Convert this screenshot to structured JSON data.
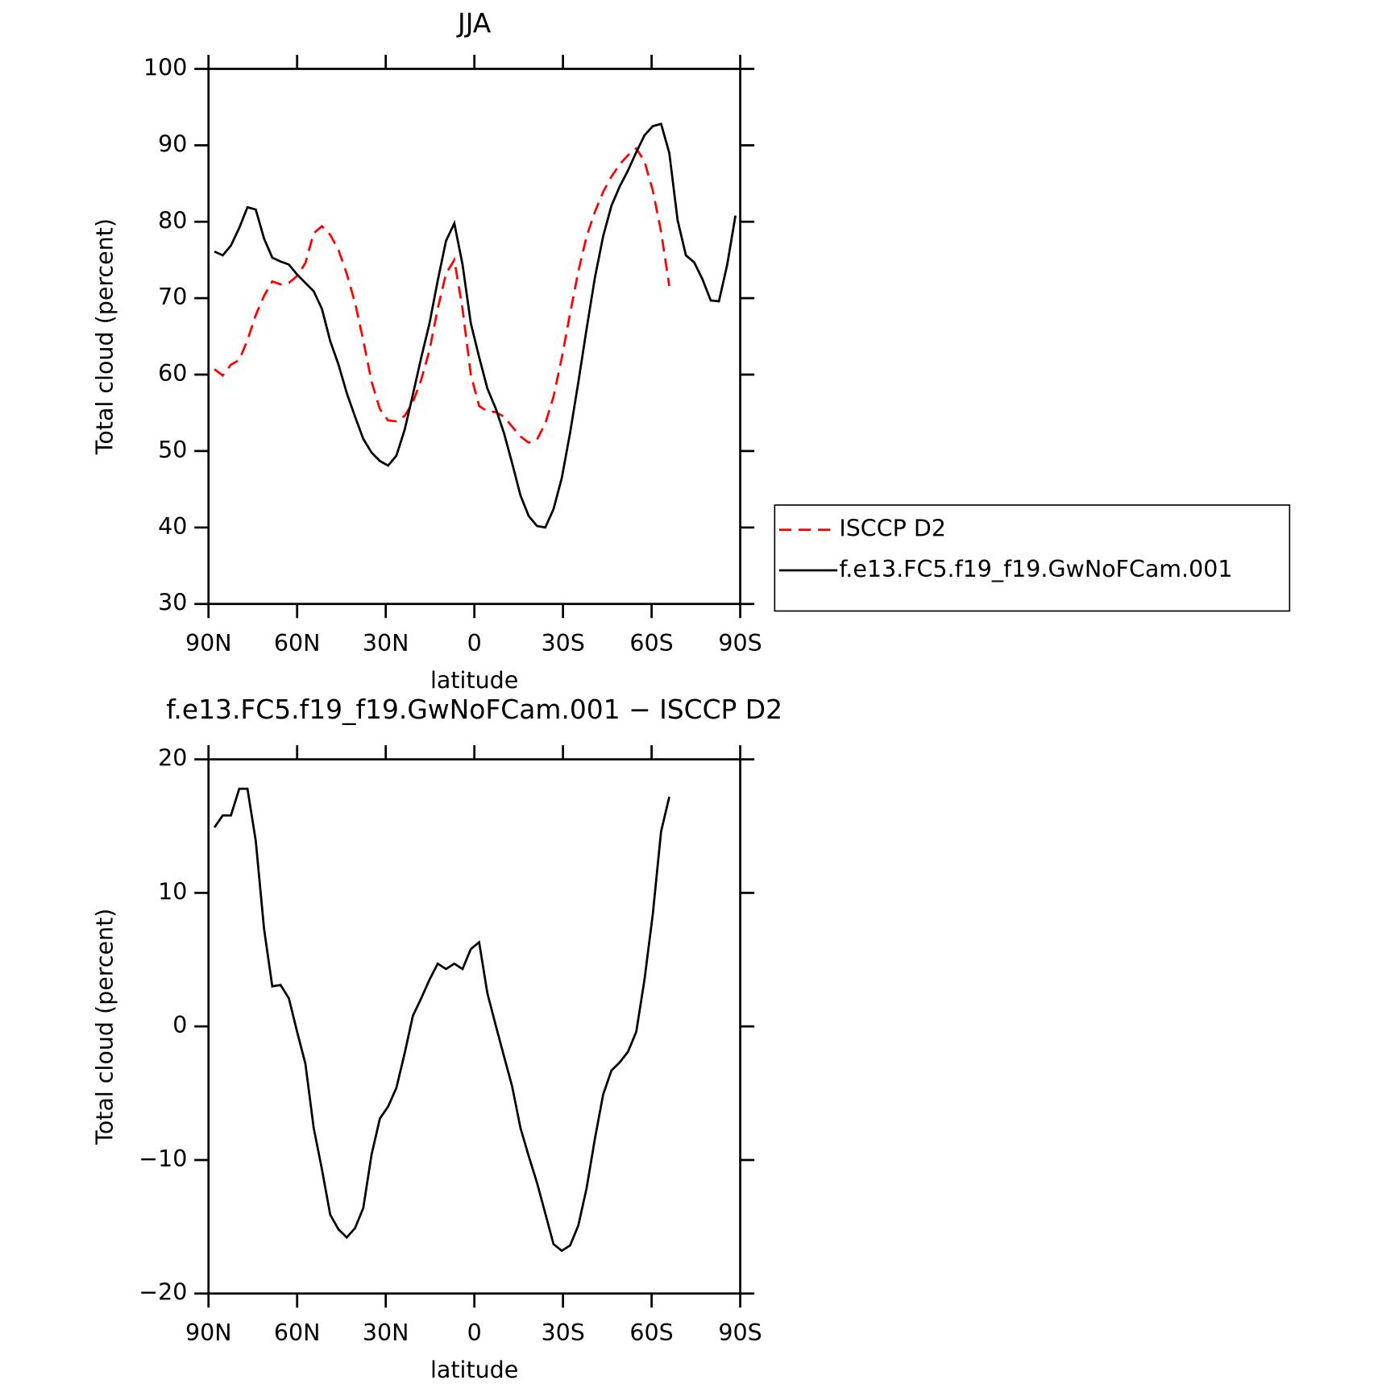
{
  "chart_data": [
    {
      "type": "line",
      "title": "JJA",
      "xlabel": "latitude",
      "ylabel": "Total cloud (percent)",
      "x": [
        88,
        85.2,
        82.4,
        79.6,
        76.8,
        74,
        71.2,
        68.4,
        65.6,
        62.8,
        60,
        57.2,
        54.4,
        51.6,
        48.8,
        46,
        43.2,
        40.4,
        37.6,
        34.8,
        32,
        29.2,
        26.4,
        23.6,
        20.8,
        18,
        15.2,
        12.4,
        9.6,
        6.8,
        4,
        1.2,
        -1.6,
        -4.4,
        -7.2,
        -10,
        -12.8,
        -15.6,
        -18.4,
        -21.2,
        -24,
        -26.8,
        -29.6,
        -32.4,
        -35.2,
        -38,
        -40.8,
        -43.6,
        -46.4,
        -49.2,
        -52,
        -54.8,
        -57.6,
        -60.4,
        -63.2,
        -66,
        -68.8,
        -71.6,
        -74.4,
        -77.2,
        -80,
        -82.8,
        -85.6,
        -88.4
      ],
      "series": [
        {
          "name": "ISCCP D2",
          "color": "#ff0000",
          "dash": "dashed",
          "values": [
            60.7,
            59.9,
            61.3,
            61.9,
            64.5,
            67.8,
            70.3,
            72.2,
            71.8,
            72.0,
            72.9,
            74.6,
            78.5,
            79.4,
            78.3,
            76.3,
            73.2,
            69.4,
            64.5,
            59.1,
            55.5,
            54.0,
            53.9,
            54.6,
            56.4,
            59.3,
            63.2,
            68.6,
            73.2,
            75.0,
            68.6,
            60.0,
            55.9,
            55.2,
            55.1,
            54.5,
            53.2,
            51.9,
            51.1,
            51.5,
            53.6,
            57.1,
            62.2,
            68.0,
            73.5,
            78.1,
            81.3,
            83.9,
            85.9,
            87.5,
            88.7,
            89.6,
            87.9,
            84.1,
            78.7,
            71.6,
            null,
            null,
            null,
            null,
            null,
            null,
            null,
            null
          ]
        },
        {
          "name": "f.e13.FC5.f19_f19.GwNoFCam.001",
          "color": "#000000",
          "dash": "solid",
          "values": [
            76.1,
            75.6,
            76.9,
            79.2,
            81.9,
            81.6,
            77.8,
            75.3,
            74.8,
            74.4,
            73.1,
            72.0,
            70.9,
            68.6,
            64.4,
            61.3,
            57.6,
            54.5,
            51.6,
            49.8,
            48.7,
            48.1,
            49.4,
            52.8,
            57.4,
            62.2,
            66.7,
            72.3,
            77.5,
            79.8,
            74.4,
            66.7,
            62.3,
            58.2,
            55.6,
            52.4,
            48.4,
            44.2,
            41.5,
            40.2,
            40.0,
            42.4,
            46.5,
            52.4,
            59.0,
            66.0,
            72.7,
            78.1,
            82.1,
            84.6,
            86.7,
            89.1,
            91.3,
            92.5,
            92.8,
            89.0,
            80.2,
            75.6,
            74.7,
            72.5,
            69.7,
            69.6,
            74.4,
            80.8
          ]
        }
      ],
      "xlim": [
        90,
        -90
      ],
      "xticks": [
        {
          "value": 90,
          "label": "90N"
        },
        {
          "value": 60,
          "label": "60N"
        },
        {
          "value": 30,
          "label": "30N"
        },
        0,
        {
          "value": -30,
          "label": "30S"
        },
        {
          "value": -60,
          "label": "60S"
        },
        {
          "value": -90,
          "label": "90S"
        }
      ],
      "ylim": [
        30,
        100
      ],
      "yticks": [
        30,
        40,
        50,
        60,
        70,
        80,
        90,
        100
      ],
      "legend": "right"
    },
    {
      "type": "line",
      "title": "f.e13.FC5.f19_f19.GwNoFCam.001 − ISCCP D2",
      "xlabel": "latitude",
      "ylabel": "Total cloud (percent)",
      "x": [
        88,
        85.2,
        82.4,
        79.6,
        76.8,
        74,
        71.2,
        68.4,
        65.6,
        62.8,
        60,
        57.2,
        54.4,
        51.6,
        48.8,
        46,
        43.2,
        40.4,
        37.6,
        34.8,
        32,
        29.2,
        26.4,
        23.6,
        20.8,
        18,
        15.2,
        12.4,
        9.6,
        6.8,
        4,
        1.2,
        -1.6,
        -4.4,
        -7.2,
        -10,
        -12.8,
        -15.6,
        -18.4,
        -21.2,
        -24,
        -26.8,
        -29.6,
        -32.4,
        -35.2,
        -38,
        -40.8,
        -43.6,
        -46.4,
        -49.2,
        -52,
        -54.8,
        -57.6,
        -60.4,
        -63.2,
        -66,
        -68.8,
        -71.6,
        -74.4,
        -77.2,
        -80,
        -82.8,
        -85.6,
        -88.4
      ],
      "values": [
        14.9,
        15.8,
        15.8,
        17.8,
        17.8,
        13.9,
        7.3,
        3.0,
        3.1,
        2.1,
        -0.4,
        -2.8,
        -7.6,
        -10.7,
        -14.1,
        -15.2,
        -15.8,
        -15.1,
        -13.6,
        -9.6,
        -6.9,
        -6.0,
        -4.6,
        -2.0,
        0.8,
        2.1,
        3.5,
        4.7,
        4.3,
        4.7,
        4.3,
        5.8,
        6.3,
        2.5,
        0.1,
        -2.2,
        -4.5,
        -7.6,
        -9.7,
        -11.7,
        -14.0,
        -16.3,
        -16.8,
        -16.4,
        -14.9,
        -12.1,
        -8.4,
        -5.1,
        -3.3,
        -2.7,
        -1.9,
        -0.4,
        3.5,
        8.4,
        14.6,
        17.2,
        null,
        null,
        null,
        null,
        null,
        null,
        null,
        null
      ],
      "color": "#000000",
      "xlim": [
        90,
        -90
      ],
      "xticks": [
        {
          "value": 90,
          "label": "90N"
        },
        {
          "value": 60,
          "label": "60N"
        },
        {
          "value": 30,
          "label": "30N"
        },
        0,
        {
          "value": -30,
          "label": "30S"
        },
        {
          "value": -60,
          "label": "60S"
        },
        {
          "value": -90,
          "label": "90S"
        }
      ],
      "ylim": [
        -20,
        20
      ],
      "yticks": [
        {
          "value": -20,
          "label": "−20"
        },
        {
          "value": -10,
          "label": "−10"
        },
        0,
        10,
        20
      ]
    }
  ]
}
